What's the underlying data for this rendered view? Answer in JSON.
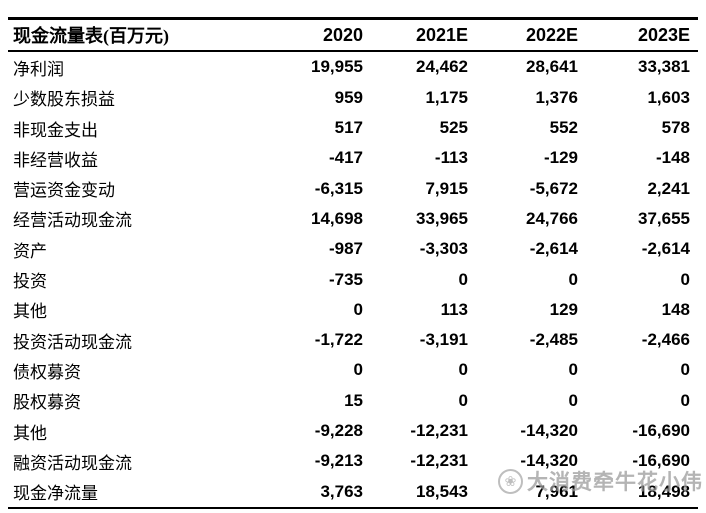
{
  "table": {
    "title": "现金流量表(百万元)",
    "columns": [
      "2020",
      "2021E",
      "2022E",
      "2023E"
    ],
    "rows": [
      {
        "label": "净利润",
        "values": [
          "19,955",
          "24,462",
          "28,641",
          "33,381"
        ]
      },
      {
        "label": "少数股东损益",
        "values": [
          "959",
          "1,175",
          "1,376",
          "1,603"
        ]
      },
      {
        "label": "非现金支出",
        "values": [
          "517",
          "525",
          "552",
          "578"
        ]
      },
      {
        "label": "非经营收益",
        "values": [
          "-417",
          "-113",
          "-129",
          "-148"
        ]
      },
      {
        "label": "营运资金变动",
        "values": [
          "-6,315",
          "7,915",
          "-5,672",
          "2,241"
        ]
      },
      {
        "label": "经营活动现金流",
        "values": [
          "14,698",
          "33,965",
          "24,766",
          "37,655"
        ]
      },
      {
        "label": "资产",
        "values": [
          "-987",
          "-3,303",
          "-2,614",
          "-2,614"
        ]
      },
      {
        "label": "投资",
        "values": [
          "-735",
          "0",
          "0",
          "0"
        ]
      },
      {
        "label": "其他",
        "values": [
          "0",
          "113",
          "129",
          "148"
        ]
      },
      {
        "label": "投资活动现金流",
        "values": [
          "-1,722",
          "-3,191",
          "-2,485",
          "-2,466"
        ]
      },
      {
        "label": "债权募资",
        "values": [
          "0",
          "0",
          "0",
          "0"
        ]
      },
      {
        "label": "股权募资",
        "values": [
          "15",
          "0",
          "0",
          "0"
        ]
      },
      {
        "label": "其他",
        "values": [
          "-9,228",
          "-12,231",
          "-14,320",
          "-16,690"
        ]
      },
      {
        "label": "融资活动现金流",
        "values": [
          "-9,213",
          "-12,231",
          "-14,320",
          "-16,690"
        ]
      },
      {
        "label": "现金净流量",
        "values": [
          "3,763",
          "18,543",
          "7,961",
          "18,498"
        ]
      }
    ]
  },
  "chart_data": {
    "type": "table",
    "title": "现金流量表(百万元)",
    "categories": [
      "2020",
      "2021E",
      "2022E",
      "2023E"
    ],
    "series": [
      {
        "name": "净利润",
        "values": [
          19955,
          24462,
          28641,
          33381
        ]
      },
      {
        "name": "少数股东损益",
        "values": [
          959,
          1175,
          1376,
          1603
        ]
      },
      {
        "name": "非现金支出",
        "values": [
          517,
          525,
          552,
          578
        ]
      },
      {
        "name": "非经营收益",
        "values": [
          -417,
          -113,
          -129,
          -148
        ]
      },
      {
        "name": "营运资金变动",
        "values": [
          -6315,
          7915,
          -5672,
          2241
        ]
      },
      {
        "name": "经营活动现金流",
        "values": [
          14698,
          33965,
          24766,
          37655
        ]
      },
      {
        "name": "资产",
        "values": [
          -987,
          -3303,
          -2614,
          -2614
        ]
      },
      {
        "name": "投资",
        "values": [
          -735,
          0,
          0,
          0
        ]
      },
      {
        "name": "其他",
        "values": [
          0,
          113,
          129,
          148
        ]
      },
      {
        "name": "投资活动现金流",
        "values": [
          -1722,
          -3191,
          -2485,
          -2466
        ]
      },
      {
        "name": "债权募资",
        "values": [
          0,
          0,
          0,
          0
        ]
      },
      {
        "name": "股权募资",
        "values": [
          15,
          0,
          0,
          0
        ]
      },
      {
        "name": "其他",
        "values": [
          -9228,
          -12231,
          -14320,
          -16690
        ]
      },
      {
        "name": "融资活动现金流",
        "values": [
          -9213,
          -12231,
          -14320,
          -16690
        ]
      },
      {
        "name": "现金净流量",
        "values": [
          3763,
          18543,
          7961,
          18498
        ]
      }
    ]
  },
  "watermark": {
    "text": "大消费牵牛花小伟",
    "icon_glyph": "❀",
    "color": "#9b9b9b"
  },
  "colors": {
    "background": "#ffffff",
    "border": "#000000",
    "text": "#000000",
    "watermark": "#9b9b9b"
  }
}
